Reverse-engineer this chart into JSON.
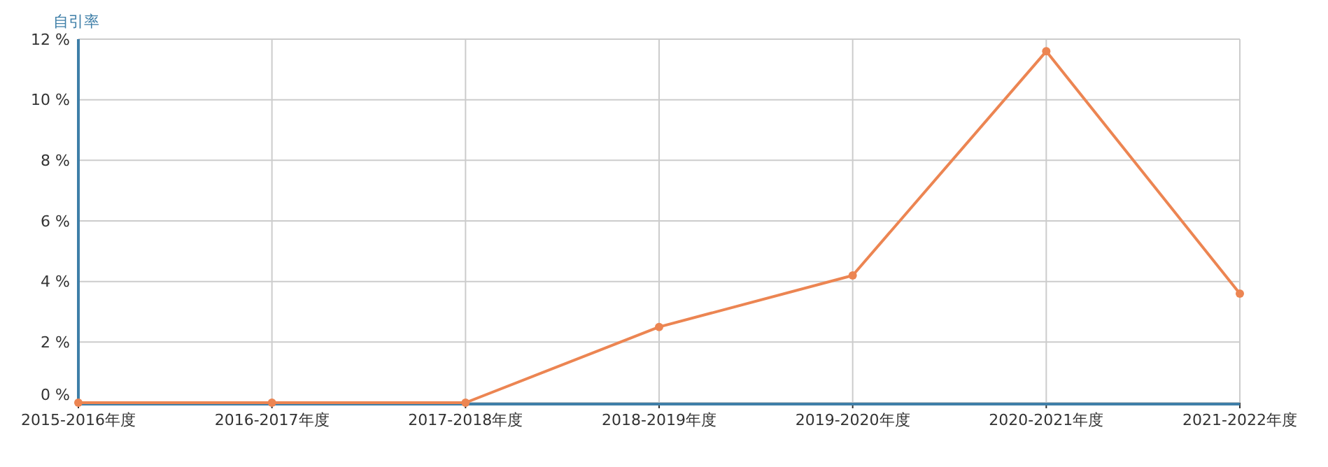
{
  "chart_data": {
    "type": "line",
    "ylabel": "自引率",
    "categories": [
      "2015-2016年度",
      "2016-2017年度",
      "2017-2018年度",
      "2018-2019年度",
      "2019-2020年度",
      "2020-2021年度",
      "2021-2022年度"
    ],
    "series": [
      {
        "color": "#ec8552",
        "values": [
          0,
          0,
          0,
          2.5,
          4.2,
          11.6,
          3.6
        ]
      }
    ],
    "ylim": [
      0,
      12
    ],
    "yticks": [
      {
        "value": 0,
        "label": "0 %"
      },
      {
        "value": 2,
        "label": "2 %"
      },
      {
        "value": 4,
        "label": "4 %"
      },
      {
        "value": 6,
        "label": "6 %"
      },
      {
        "value": 8,
        "label": "8 %"
      },
      {
        "value": 10,
        "label": "10 %"
      },
      {
        "value": 12,
        "label": "12 %"
      }
    ],
    "grid": true,
    "marker": "circle",
    "line_style": "solid"
  }
}
